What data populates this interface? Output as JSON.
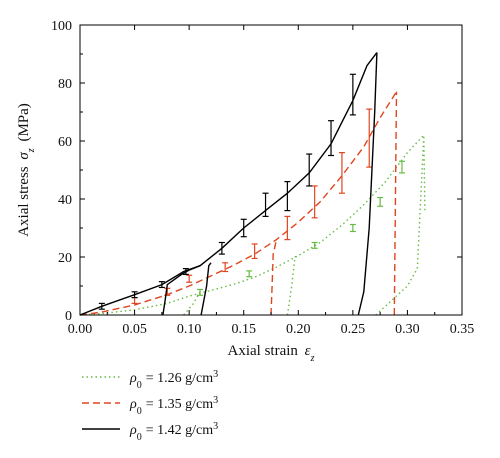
{
  "chart_data": {
    "type": "line",
    "title": "",
    "xlabel": "Axial strain",
    "xlabel_symbol": "ε",
    "xlabel_sub": "z",
    "ylabel": "Axial stress",
    "ylabel_symbol": "σ",
    "ylabel_sub": "z",
    "ylabel_unit": "(MPa)",
    "xlim": [
      0.0,
      0.35
    ],
    "ylim": [
      0,
      100
    ],
    "x_ticks": [
      "0.00",
      "0.05",
      "0.10",
      "0.15",
      "0.20",
      "0.25",
      "0.30",
      "0.35"
    ],
    "y_ticks": [
      "0",
      "20",
      "40",
      "60",
      "80",
      "100"
    ],
    "grid": false,
    "legend_position": "below-left",
    "series": [
      {
        "name": "ρ0 = 1.26 g/cm3",
        "legend_symbol": "ρ",
        "legend_sub": "0",
        "legend_value": "= 1.26 g/cm",
        "legend_sup": "3",
        "color": "#66bb44",
        "dash": "dotted",
        "loading": [
          [
            0.0,
            0
          ],
          [
            0.02,
            0.5
          ],
          [
            0.05,
            1.8
          ],
          [
            0.08,
            4
          ],
          [
            0.1,
            6.5
          ],
          [
            0.12,
            8.5
          ],
          [
            0.14,
            10.5
          ],
          [
            0.16,
            13
          ],
          [
            0.18,
            16.5
          ],
          [
            0.2,
            20.5
          ],
          [
            0.22,
            25
          ],
          [
            0.24,
            31
          ],
          [
            0.26,
            38
          ],
          [
            0.28,
            46
          ],
          [
            0.3,
            56
          ],
          [
            0.315,
            62
          ]
        ],
        "unloading_reload": [
          [
            0.095,
            0
          ],
          [
            0.104,
            4
          ],
          [
            0.11,
            8
          ],
          [
            0.19,
            0
          ],
          [
            0.194,
            10
          ],
          [
            0.197,
            20
          ],
          [
            0.2,
            20.5
          ],
          [
            0.271,
            0
          ],
          [
            0.3,
            10
          ],
          [
            0.309,
            16
          ],
          [
            0.315,
            62
          ],
          [
            0.316,
            36
          ],
          [
            0.317,
            0
          ]
        ],
        "error_bars": [
          {
            "x": 0.11,
            "y": 7.8,
            "err": 1.0
          },
          {
            "x": 0.155,
            "y": 14.2,
            "err": 1.0
          },
          {
            "x": 0.215,
            "y": 24.0,
            "err": 1.0
          },
          {
            "x": 0.25,
            "y": 30.0,
            "err": 1.2
          },
          {
            "x": 0.275,
            "y": 39.0,
            "err": 1.5
          },
          {
            "x": 0.295,
            "y": 51.0,
            "err": 2.0
          }
        ]
      },
      {
        "name": "ρ0 = 1.35 g/cm3",
        "legend_symbol": "ρ",
        "legend_sub": "0",
        "legend_value": "= 1.35 g/cm",
        "legend_sup": "3",
        "color": "#e0451f",
        "dash": "dashed",
        "loading": [
          [
            0.0,
            0
          ],
          [
            0.02,
            1
          ],
          [
            0.05,
            3.5
          ],
          [
            0.08,
            7
          ],
          [
            0.1,
            10
          ],
          [
            0.12,
            13.5
          ],
          [
            0.14,
            17
          ],
          [
            0.16,
            21
          ],
          [
            0.18,
            26
          ],
          [
            0.2,
            32
          ],
          [
            0.22,
            39
          ],
          [
            0.24,
            48
          ],
          [
            0.26,
            58
          ],
          [
            0.275,
            68
          ],
          [
            0.29,
            77
          ]
        ],
        "unloading_reload": [
          [
            0.175,
            0
          ],
          [
            0.176,
            10
          ],
          [
            0.177,
            21
          ],
          [
            0.18,
            26
          ],
          [
            0.288,
            0
          ],
          [
            0.29,
            77
          ]
        ],
        "error_bars": [
          {
            "x": 0.05,
            "y": 5.0,
            "err": 1.0
          },
          {
            "x": 0.08,
            "y": 8.0,
            "err": 1.2
          },
          {
            "x": 0.1,
            "y": 12.5,
            "err": 1.2
          },
          {
            "x": 0.133,
            "y": 16.5,
            "err": 1.5
          },
          {
            "x": 0.16,
            "y": 22.0,
            "err": 2.5
          },
          {
            "x": 0.19,
            "y": 30.0,
            "err": 4.0
          },
          {
            "x": 0.215,
            "y": 39.0,
            "err": 5.5
          },
          {
            "x": 0.24,
            "y": 49.0,
            "err": 7.0
          },
          {
            "x": 0.265,
            "y": 61.0,
            "err": 10.0
          }
        ]
      },
      {
        "name": "ρ0 = 1.42 g/cm3",
        "legend_symbol": "ρ",
        "legend_sub": "0",
        "legend_value": "= 1.42 g/cm",
        "legend_sup": "3",
        "color": "#000000",
        "dash": "solid",
        "loading": [
          [
            0.0,
            0
          ],
          [
            0.02,
            3
          ],
          [
            0.05,
            7
          ],
          [
            0.075,
            10.5
          ],
          [
            0.095,
            15
          ],
          [
            0.11,
            17
          ],
          [
            0.13,
            23
          ],
          [
            0.15,
            30
          ],
          [
            0.17,
            36
          ],
          [
            0.19,
            42
          ],
          [
            0.21,
            49
          ],
          [
            0.23,
            59
          ],
          [
            0.25,
            74
          ],
          [
            0.263,
            86
          ],
          [
            0.272,
            90.5
          ]
        ],
        "unloading_reload": [
          [
            0.076,
            0
          ],
          [
            0.078,
            5
          ],
          [
            0.08,
            10.5
          ],
          [
            0.093,
            14
          ],
          [
            0.1,
            15.5
          ],
          [
            0.11,
            17
          ],
          [
            0.111,
            0
          ],
          [
            0.116,
            10
          ],
          [
            0.118,
            17
          ],
          [
            0.12,
            18
          ],
          [
            0.255,
            0
          ],
          [
            0.26,
            8
          ],
          [
            0.265,
            30
          ],
          [
            0.27,
            70
          ],
          [
            0.272,
            90.5
          ]
        ],
        "error_bars": [
          {
            "x": 0.02,
            "y": 3.0,
            "err": 1.0
          },
          {
            "x": 0.05,
            "y": 7.0,
            "err": 1.0
          },
          {
            "x": 0.075,
            "y": 10.5,
            "err": 1.0
          },
          {
            "x": 0.097,
            "y": 15.0,
            "err": 1.0
          },
          {
            "x": 0.13,
            "y": 23.0,
            "err": 2.0
          },
          {
            "x": 0.15,
            "y": 30.0,
            "err": 3.0
          },
          {
            "x": 0.17,
            "y": 38.0,
            "err": 4.0
          },
          {
            "x": 0.19,
            "y": 41.0,
            "err": 5.0
          },
          {
            "x": 0.21,
            "y": 50.0,
            "err": 5.5
          },
          {
            "x": 0.23,
            "y": 61.0,
            "err": 6.0
          },
          {
            "x": 0.25,
            "y": 76.0,
            "err": 7.0
          }
        ]
      }
    ]
  }
}
